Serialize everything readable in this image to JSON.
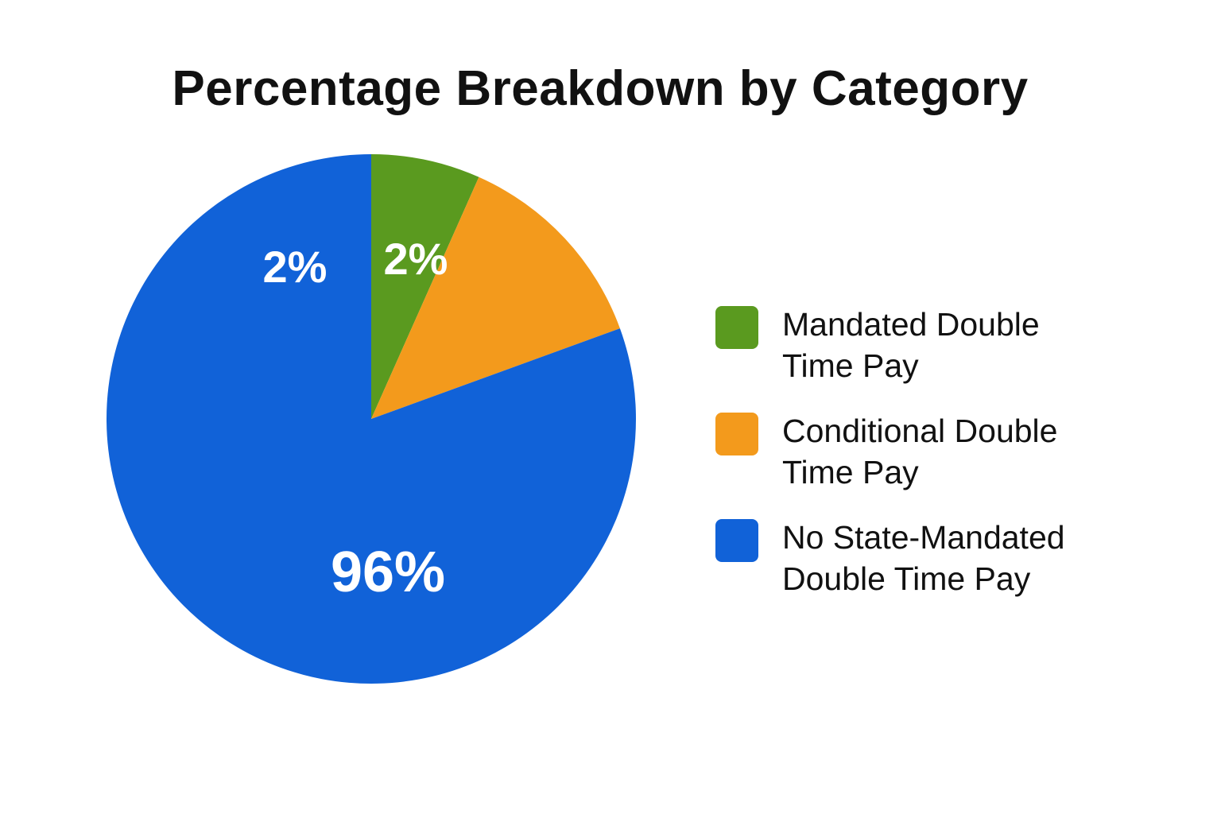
{
  "chart_data": {
    "type": "pie",
    "title": "Percentage Breakdown by Category",
    "legend_position": "right",
    "slices": [
      {
        "label": "Mandated Double Time Pay",
        "value": 2,
        "display": "2%",
        "color": "#5a9a1f"
      },
      {
        "label": "Conditional Double Time Pay",
        "value": 2,
        "display": "2%",
        "color": "#f39a1c"
      },
      {
        "label": "No State-Mandated Double Time Pay",
        "value": 96,
        "display": "96%",
        "color": "#1162d8"
      }
    ]
  }
}
